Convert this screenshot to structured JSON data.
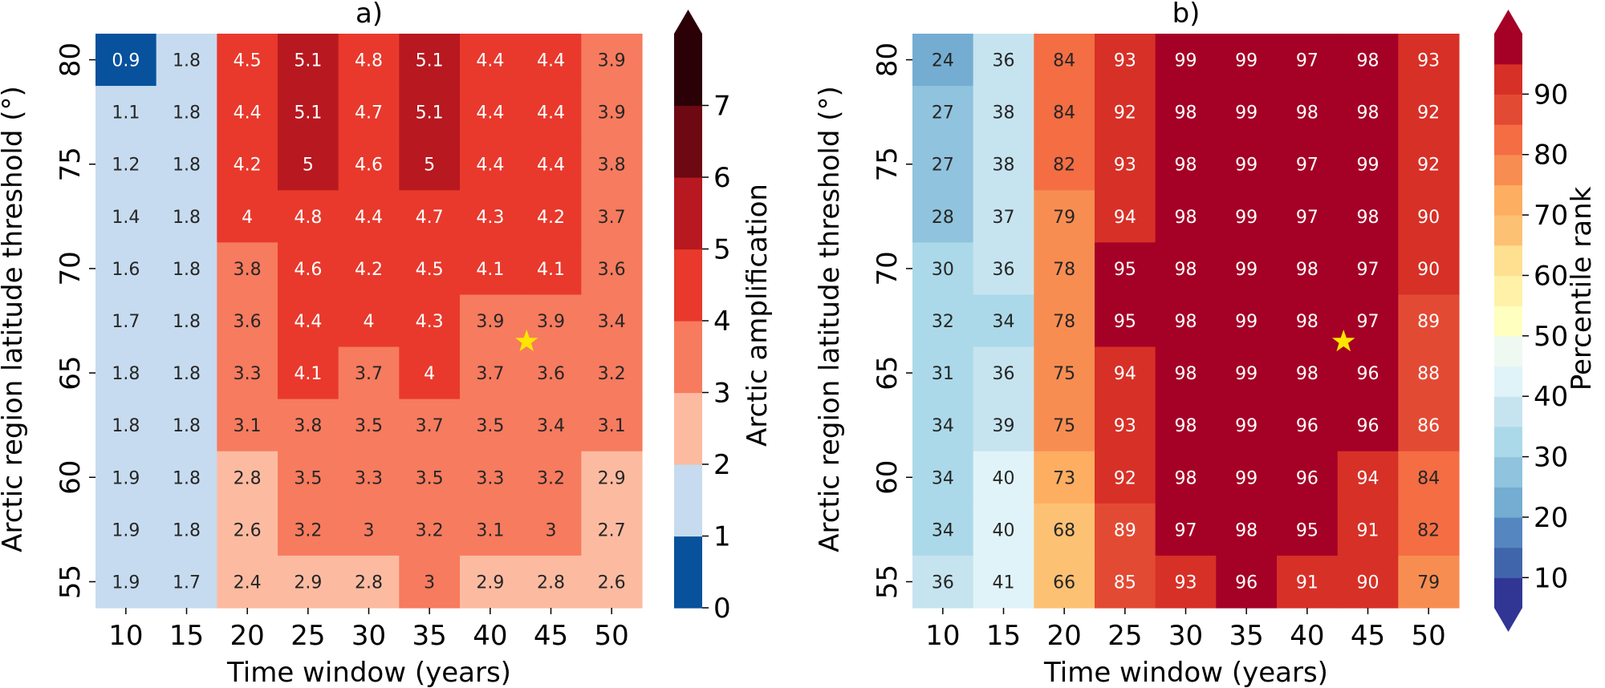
{
  "chart_data": [
    {
      "type": "heatmap",
      "title": "a)",
      "xlabel": "Time window (years)",
      "ylabel": "Arctic region latitude threshold (°)",
      "x": [
        10,
        15,
        20,
        25,
        30,
        35,
        40,
        45,
        50
      ],
      "y": [
        80,
        77.5,
        75,
        72.5,
        70,
        67.5,
        65,
        62.5,
        60,
        57.5,
        55
      ],
      "xticks": [
        "10",
        "15",
        "20",
        "25",
        "30",
        "35",
        "40",
        "45",
        "50"
      ],
      "yticks": [
        "80",
        "75",
        "70",
        "65",
        "60",
        "55"
      ],
      "values": [
        [
          0.9,
          1.8,
          4.5,
          5.1,
          4.8,
          5.1,
          4.4,
          4.4,
          3.9
        ],
        [
          1.1,
          1.8,
          4.4,
          5.1,
          4.7,
          5.1,
          4.4,
          4.4,
          3.9
        ],
        [
          1.2,
          1.8,
          4.2,
          5,
          4.6,
          5,
          4.4,
          4.4,
          3.8
        ],
        [
          1.4,
          1.8,
          4,
          4.8,
          4.4,
          4.7,
          4.3,
          4.2,
          3.7
        ],
        [
          1.6,
          1.8,
          3.8,
          4.6,
          4.2,
          4.5,
          4.1,
          4.1,
          3.6
        ],
        [
          1.7,
          1.8,
          3.6,
          4.4,
          4,
          4.3,
          3.9,
          3.9,
          3.4
        ],
        [
          1.8,
          1.8,
          3.3,
          4.1,
          3.7,
          4,
          3.7,
          3.6,
          3.2
        ],
        [
          1.8,
          1.8,
          3.1,
          3.8,
          3.5,
          3.7,
          3.5,
          3.4,
          3.1
        ],
        [
          1.9,
          1.8,
          2.8,
          3.5,
          3.3,
          3.5,
          3.3,
          3.2,
          2.9
        ],
        [
          1.9,
          1.8,
          2.6,
          3.2,
          3,
          3.2,
          3.1,
          3,
          2.7
        ],
        [
          1.9,
          1.7,
          2.4,
          2.9,
          2.8,
          3,
          2.9,
          2.8,
          2.6
        ]
      ],
      "marker": {
        "symbol": "star",
        "color": "#ffe600",
        "x": 43,
        "y": 66.5
      },
      "colorbar": {
        "label": "Arctic amplification",
        "ticks": [
          "0",
          "1",
          "2",
          "3",
          "4",
          "5",
          "6",
          "7"
        ],
        "bounds": [
          0,
          1,
          2,
          3,
          4,
          5,
          6,
          7
        ],
        "colors": [
          "#08519c",
          "#c6dbef",
          "#fcbba1",
          "#f77b5e",
          "#e8392c",
          "#b81820",
          "#6e0812",
          "#2b0006"
        ],
        "extend": "max"
      }
    },
    {
      "type": "heatmap",
      "title": "b)",
      "xlabel": "Time window (years)",
      "ylabel": "Arctic region latitude threshold (°)",
      "x": [
        10,
        15,
        20,
        25,
        30,
        35,
        40,
        45,
        50
      ],
      "y": [
        80,
        77.5,
        75,
        72.5,
        70,
        67.5,
        65,
        62.5,
        60,
        57.5,
        55
      ],
      "xticks": [
        "10",
        "15",
        "20",
        "25",
        "30",
        "35",
        "40",
        "45",
        "50"
      ],
      "yticks": [
        "80",
        "75",
        "70",
        "65",
        "60",
        "55"
      ],
      "values": [
        [
          24,
          36,
          84,
          93,
          99,
          99,
          97,
          98,
          93
        ],
        [
          27,
          38,
          84,
          92,
          98,
          99,
          98,
          98,
          92
        ],
        [
          27,
          38,
          82,
          93,
          98,
          99,
          97,
          99,
          92
        ],
        [
          28,
          37,
          79,
          94,
          98,
          99,
          97,
          98,
          90
        ],
        [
          30,
          36,
          78,
          95,
          98,
          99,
          98,
          97,
          90
        ],
        [
          32,
          34,
          78,
          95,
          98,
          99,
          98,
          97,
          89
        ],
        [
          31,
          36,
          75,
          94,
          98,
          99,
          98,
          96,
          88
        ],
        [
          34,
          39,
          75,
          93,
          98,
          99,
          96,
          96,
          86
        ],
        [
          34,
          40,
          73,
          92,
          98,
          99,
          96,
          94,
          84
        ],
        [
          34,
          40,
          68,
          89,
          97,
          98,
          95,
          91,
          82
        ],
        [
          36,
          41,
          66,
          85,
          93,
          96,
          91,
          90,
          79
        ]
      ],
      "marker": {
        "symbol": "star",
        "color": "#ffe600",
        "x": 43,
        "y": 66.5
      },
      "colorbar": {
        "label": "Percentile rank",
        "ticks": [
          "10",
          "20",
          "30",
          "40",
          "50",
          "60",
          "70",
          "80",
          "90"
        ],
        "bounds": [
          5,
          10,
          15,
          20,
          25,
          30,
          35,
          40,
          45,
          50,
          55,
          60,
          65,
          70,
          75,
          80,
          85,
          90,
          95
        ],
        "colors": [
          "#313695",
          "#4065ab",
          "#5586c0",
          "#74add1",
          "#90c3dd",
          "#abd9e9",
          "#c6e4ef",
          "#e0f3f8",
          "#eef9f2",
          "#ffffbf",
          "#fff1a8",
          "#fee090",
          "#fdc174",
          "#fdae61",
          "#f88d52",
          "#f46d43",
          "#e34a33",
          "#d73027",
          "#a50026"
        ],
        "extend": "both"
      }
    }
  ]
}
